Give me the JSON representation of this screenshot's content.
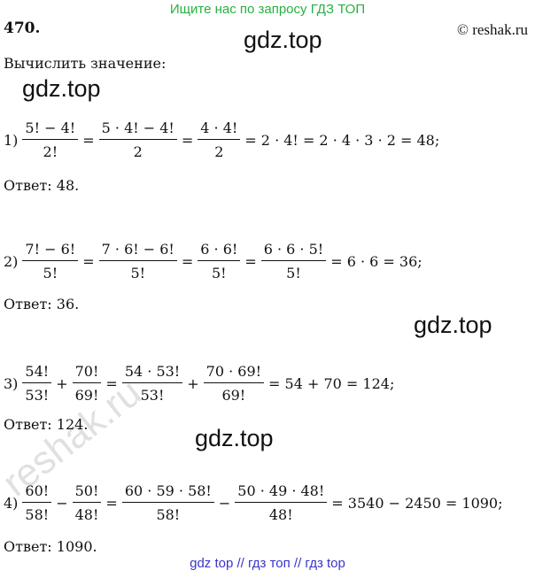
{
  "header": {
    "banner": "Ищите нас по запросу ГДЗ ТОП",
    "number": "470.",
    "copyright": "© reshak.ru"
  },
  "task": "Вычислить значение:",
  "watermarks": [
    "gdz.top",
    "gdz.top",
    "gdz.top",
    "gdz.top"
  ],
  "diagonal_watermark": "reshak.ru",
  "items": [
    {
      "label": "1)",
      "parts": [
        {
          "num": "5! − 4!",
          "den": "2!"
        },
        "=",
        {
          "num": "5 · 4! − 4!",
          "den": "2"
        },
        "=",
        {
          "num": "4 · 4!",
          "den": "2"
        },
        "= 2 · 4! = 2 · 4 · 3 · 2 = 48;"
      ],
      "answer": "Ответ:  48."
    },
    {
      "label": "2)",
      "parts": [
        {
          "num": "7! − 6!",
          "den": "5!"
        },
        "=",
        {
          "num": "7 · 6! − 6!",
          "den": "5!"
        },
        "=",
        {
          "num": "6 · 6!",
          "den": "5!"
        },
        "=",
        {
          "num": "6 · 6 · 5!",
          "den": "5!"
        },
        "= 6 · 6 = 36;"
      ],
      "answer": "Ответ:  36."
    },
    {
      "label": "3)",
      "parts": [
        {
          "num": "54!",
          "den": "53!"
        },
        "+",
        {
          "num": "70!",
          "den": "69!"
        },
        "=",
        {
          "num": "54 · 53!",
          "den": "53!"
        },
        "+",
        {
          "num": "70 · 69!",
          "den": "69!"
        },
        "= 54 + 70 = 124;"
      ],
      "answer": "Ответ:  124."
    },
    {
      "label": "4)",
      "parts": [
        {
          "num": "60!",
          "den": "58!"
        },
        "−",
        {
          "num": "50!",
          "den": "48!"
        },
        "=",
        {
          "num": "60 · 59 · 58!",
          "den": "58!"
        },
        "−",
        {
          "num": "50 · 49 · 48!",
          "den": "48!"
        },
        "= 3540 − 2450 = 1090;"
      ],
      "answer": "Ответ:  1090."
    }
  ],
  "footer": "gdz top  //  гдз топ  //  гдз top"
}
